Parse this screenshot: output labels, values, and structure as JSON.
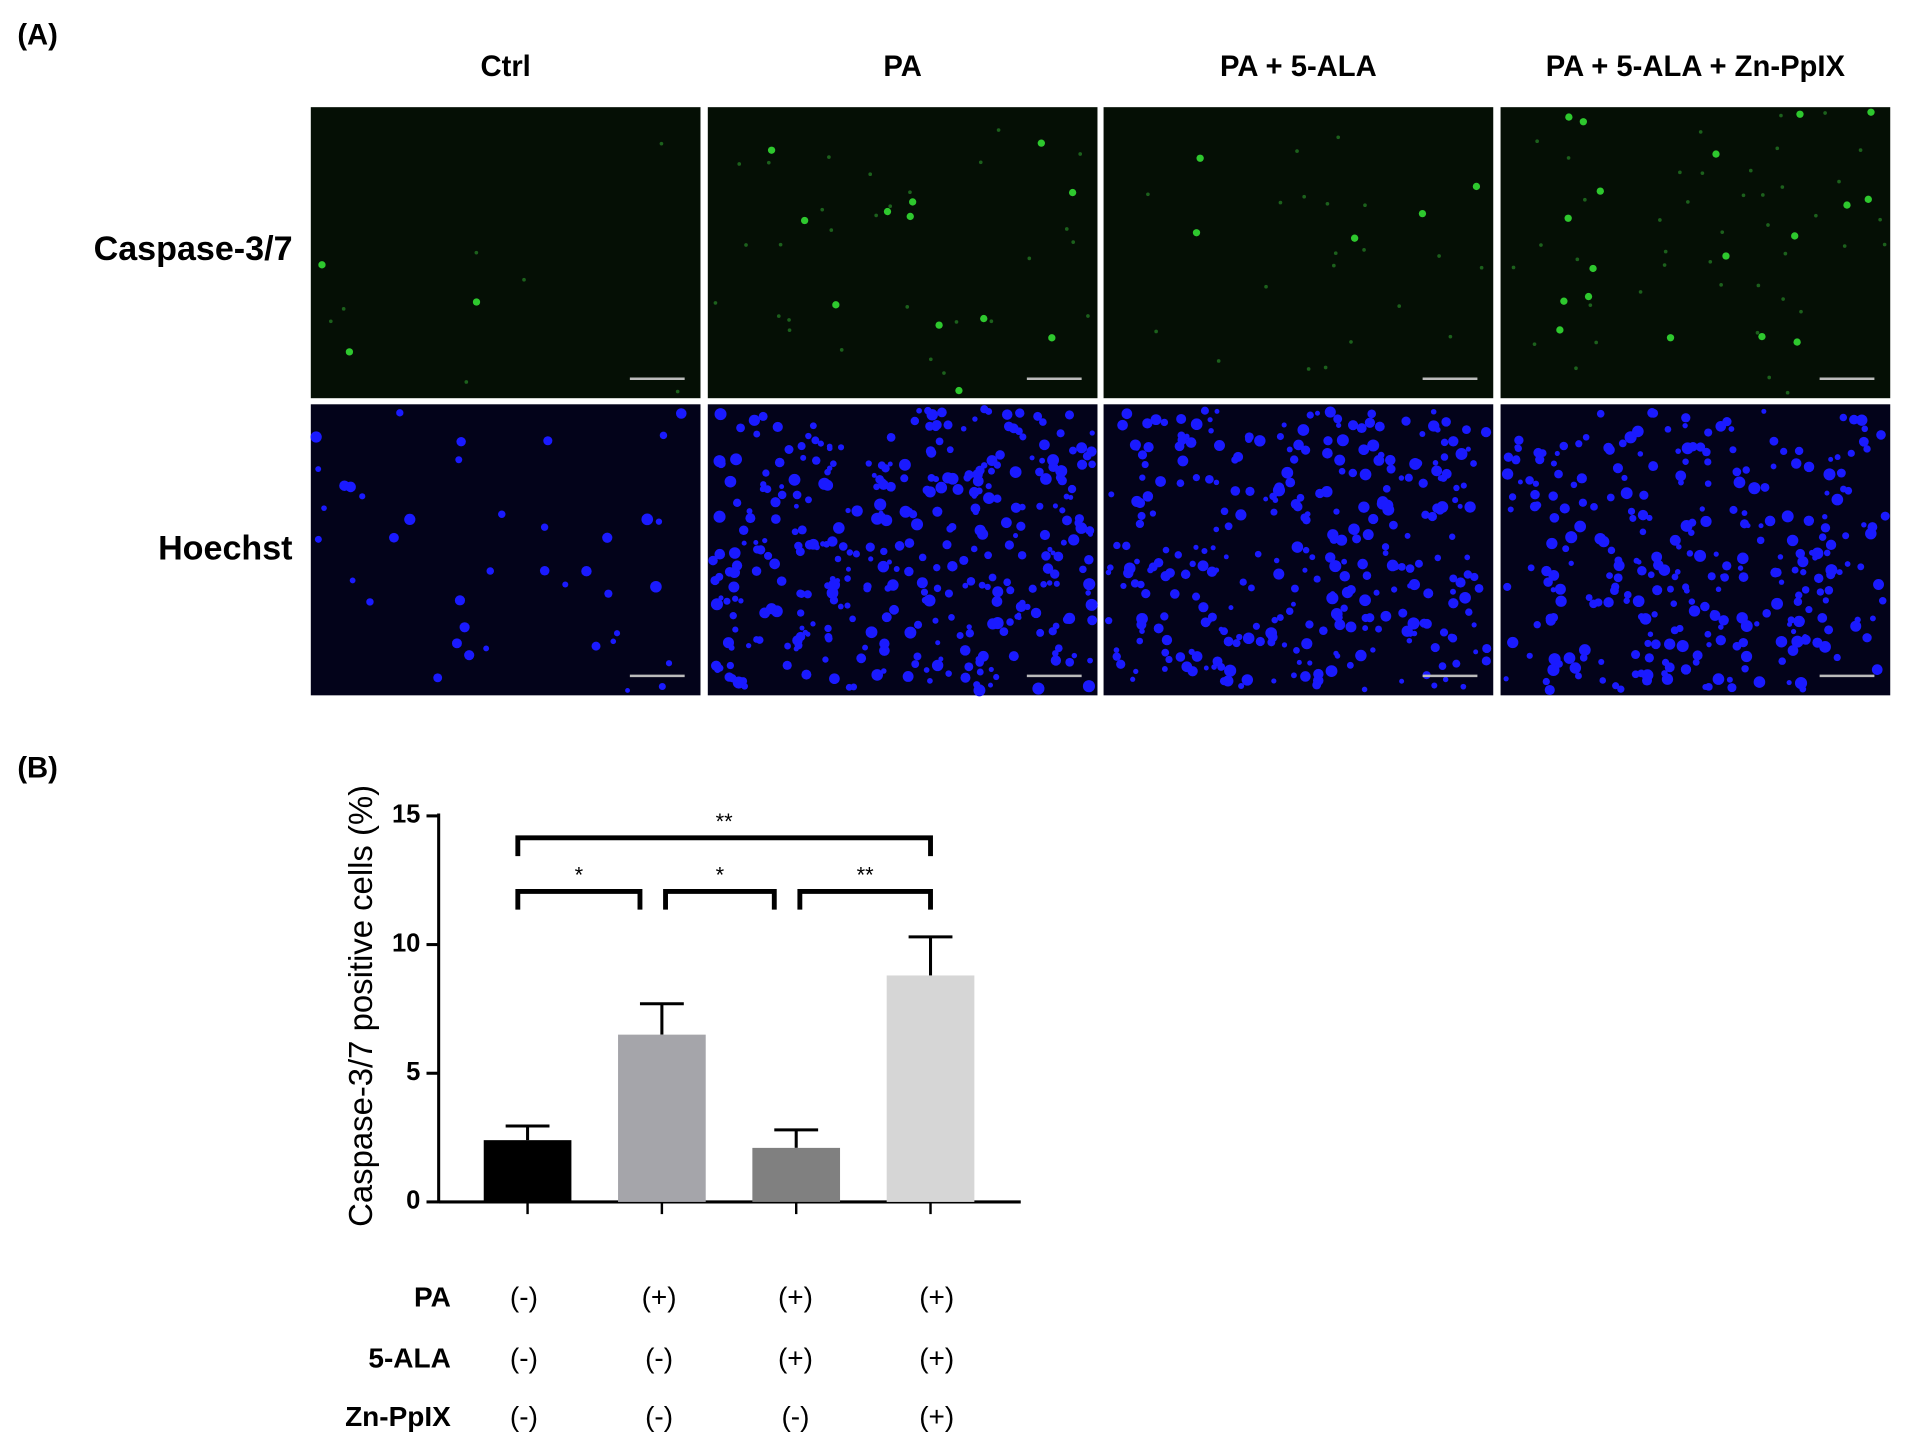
{
  "panel_a": {
    "label": "(A)",
    "columns": [
      "Ctrl",
      "PA",
      "PA + 5-ALA",
      "PA + 5-ALA + Zn-PpIX"
    ],
    "rows": [
      "Caspase-3/7",
      "Hoechst"
    ]
  },
  "panel_b": {
    "label": "(B)"
  },
  "chart_data": {
    "type": "bar",
    "y_label": "Caspase-3/7 positive cells (%)",
    "categories": [
      null,
      null,
      null,
      null
    ],
    "values": [
      2.4,
      6.5,
      2.1,
      8.8
    ],
    "errors": [
      0.55,
      1.2,
      0.7,
      1.5
    ],
    "colors": [
      "#000000",
      "#a5a5aa",
      "#808080",
      "#d6d6d6"
    ],
    "ylim": [
      0,
      15
    ],
    "yticks": [
      0,
      5,
      10,
      15
    ],
    "annotations": [
      {
        "label": "**",
        "from": 0,
        "to": 3
      },
      {
        "label": "*",
        "from": 0,
        "to": 1
      },
      {
        "label": "*",
        "from": 1,
        "to": 2
      },
      {
        "label": "**",
        "from": 2,
        "to": 3
      }
    ]
  },
  "treatment_table": {
    "rows": [
      {
        "label": "PA",
        "cells": [
          "(-)",
          "(+)",
          "(+)",
          "(+)"
        ]
      },
      {
        "label": "5-ALA",
        "cells": [
          "(-)",
          "(-)",
          "(+)",
          "(+)"
        ]
      },
      {
        "label": "Zn-PpIX",
        "cells": [
          "(-)",
          "(-)",
          "(-)",
          "(+)"
        ]
      }
    ]
  }
}
